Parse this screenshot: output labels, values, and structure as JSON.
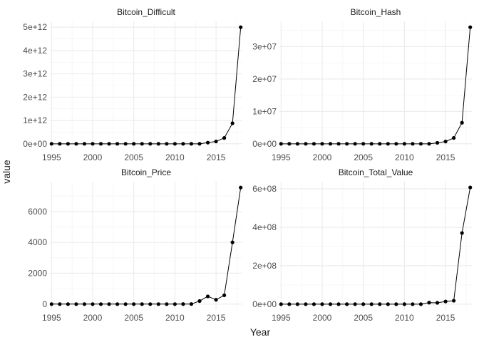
{
  "chart_data": {
    "type": "line",
    "xlabel": "Year",
    "ylabel": "value",
    "grid": true,
    "x_ticks": [
      1995,
      2000,
      2005,
      2010,
      2015
    ],
    "x_tick_labels": [
      "1995",
      "2000",
      "2005",
      "2010",
      "2015"
    ],
    "xlim": [
      1994.8,
      2018.2
    ],
    "panels": [
      {
        "title": "Bitcoin_Difficult",
        "x": [
          1995,
          1996,
          1997,
          1998,
          1999,
          2000,
          2001,
          2002,
          2003,
          2004,
          2005,
          2006,
          2007,
          2008,
          2009,
          2010,
          2011,
          2012,
          2013,
          2014,
          2015,
          2016,
          2017,
          2018
        ],
        "values": [
          0,
          0,
          0,
          0,
          0,
          0,
          0,
          0,
          0,
          0,
          0,
          0,
          0,
          0,
          0,
          0,
          0,
          0,
          0,
          50000000000.0,
          100000000000.0,
          250000000000.0,
          880000000000.0,
          5000000000000.0
        ],
        "ylim": [
          -250000000000.0,
          5250000000000.0
        ],
        "y_ticks": [
          0,
          1000000000000.0,
          2000000000000.0,
          3000000000000.0,
          4000000000000.0,
          5000000000000.0
        ],
        "y_tick_labels": [
          "0e+00",
          "1e+12",
          "2e+12",
          "3e+12",
          "4e+12",
          "5e+12"
        ]
      },
      {
        "title": "Bitcoin_Hash",
        "x": [
          1995,
          1996,
          1997,
          1998,
          1999,
          2000,
          2001,
          2002,
          2003,
          2004,
          2005,
          2006,
          2007,
          2008,
          2009,
          2010,
          2011,
          2012,
          2013,
          2014,
          2015,
          2016,
          2017,
          2018
        ],
        "values": [
          0,
          0,
          0,
          0,
          0,
          0,
          0,
          0,
          0,
          0,
          0,
          0,
          0,
          0,
          0,
          0,
          0,
          0,
          0,
          300000.0,
          700000.0,
          1800000.0,
          6500000.0,
          36000000.0
        ],
        "ylim": [
          -1800000.0,
          37800000.0
        ],
        "y_ticks": [
          0,
          10000000.0,
          20000000.0,
          30000000.0
        ],
        "y_tick_labels": [
          "0e+00",
          "1e+07",
          "2e+07",
          "3e+07"
        ]
      },
      {
        "title": "Bitcoin_Price",
        "x": [
          1995,
          1996,
          1997,
          1998,
          1999,
          2000,
          2001,
          2002,
          2003,
          2004,
          2005,
          2006,
          2007,
          2008,
          2009,
          2010,
          2011,
          2012,
          2013,
          2014,
          2015,
          2016,
          2017,
          2018
        ],
        "values": [
          0,
          0,
          0,
          0,
          0,
          0,
          0,
          0,
          0,
          0,
          0,
          0,
          0,
          0,
          0,
          0,
          2,
          5,
          200,
          500,
          280,
          570,
          4000,
          7550
        ],
        "ylim": [
          -378,
          7928
        ],
        "y_ticks": [
          0,
          2000,
          4000,
          6000
        ],
        "y_tick_labels": [
          "0",
          "2000",
          "4000",
          "6000"
        ]
      },
      {
        "title": "Bitcoin_Total_Value",
        "x": [
          1995,
          1996,
          1997,
          1998,
          1999,
          2000,
          2001,
          2002,
          2003,
          2004,
          2005,
          2006,
          2007,
          2008,
          2009,
          2010,
          2011,
          2012,
          2013,
          2014,
          2015,
          2016,
          2017,
          2018
        ],
        "values": [
          0,
          0,
          0,
          0,
          0,
          0,
          0,
          0,
          0,
          0,
          0,
          0,
          0,
          0,
          0,
          0,
          0,
          0,
          8000000.0,
          7000000.0,
          14000000.0,
          18000000.0,
          370000000.0,
          607000000.0
        ],
        "ylim": [
          -30000000.0,
          637000000.0
        ],
        "y_ticks": [
          0,
          200000000.0,
          400000000.0,
          600000000.0
        ],
        "y_tick_labels": [
          "0e+00",
          "2e+08",
          "4e+08",
          "6e+08"
        ]
      }
    ]
  }
}
